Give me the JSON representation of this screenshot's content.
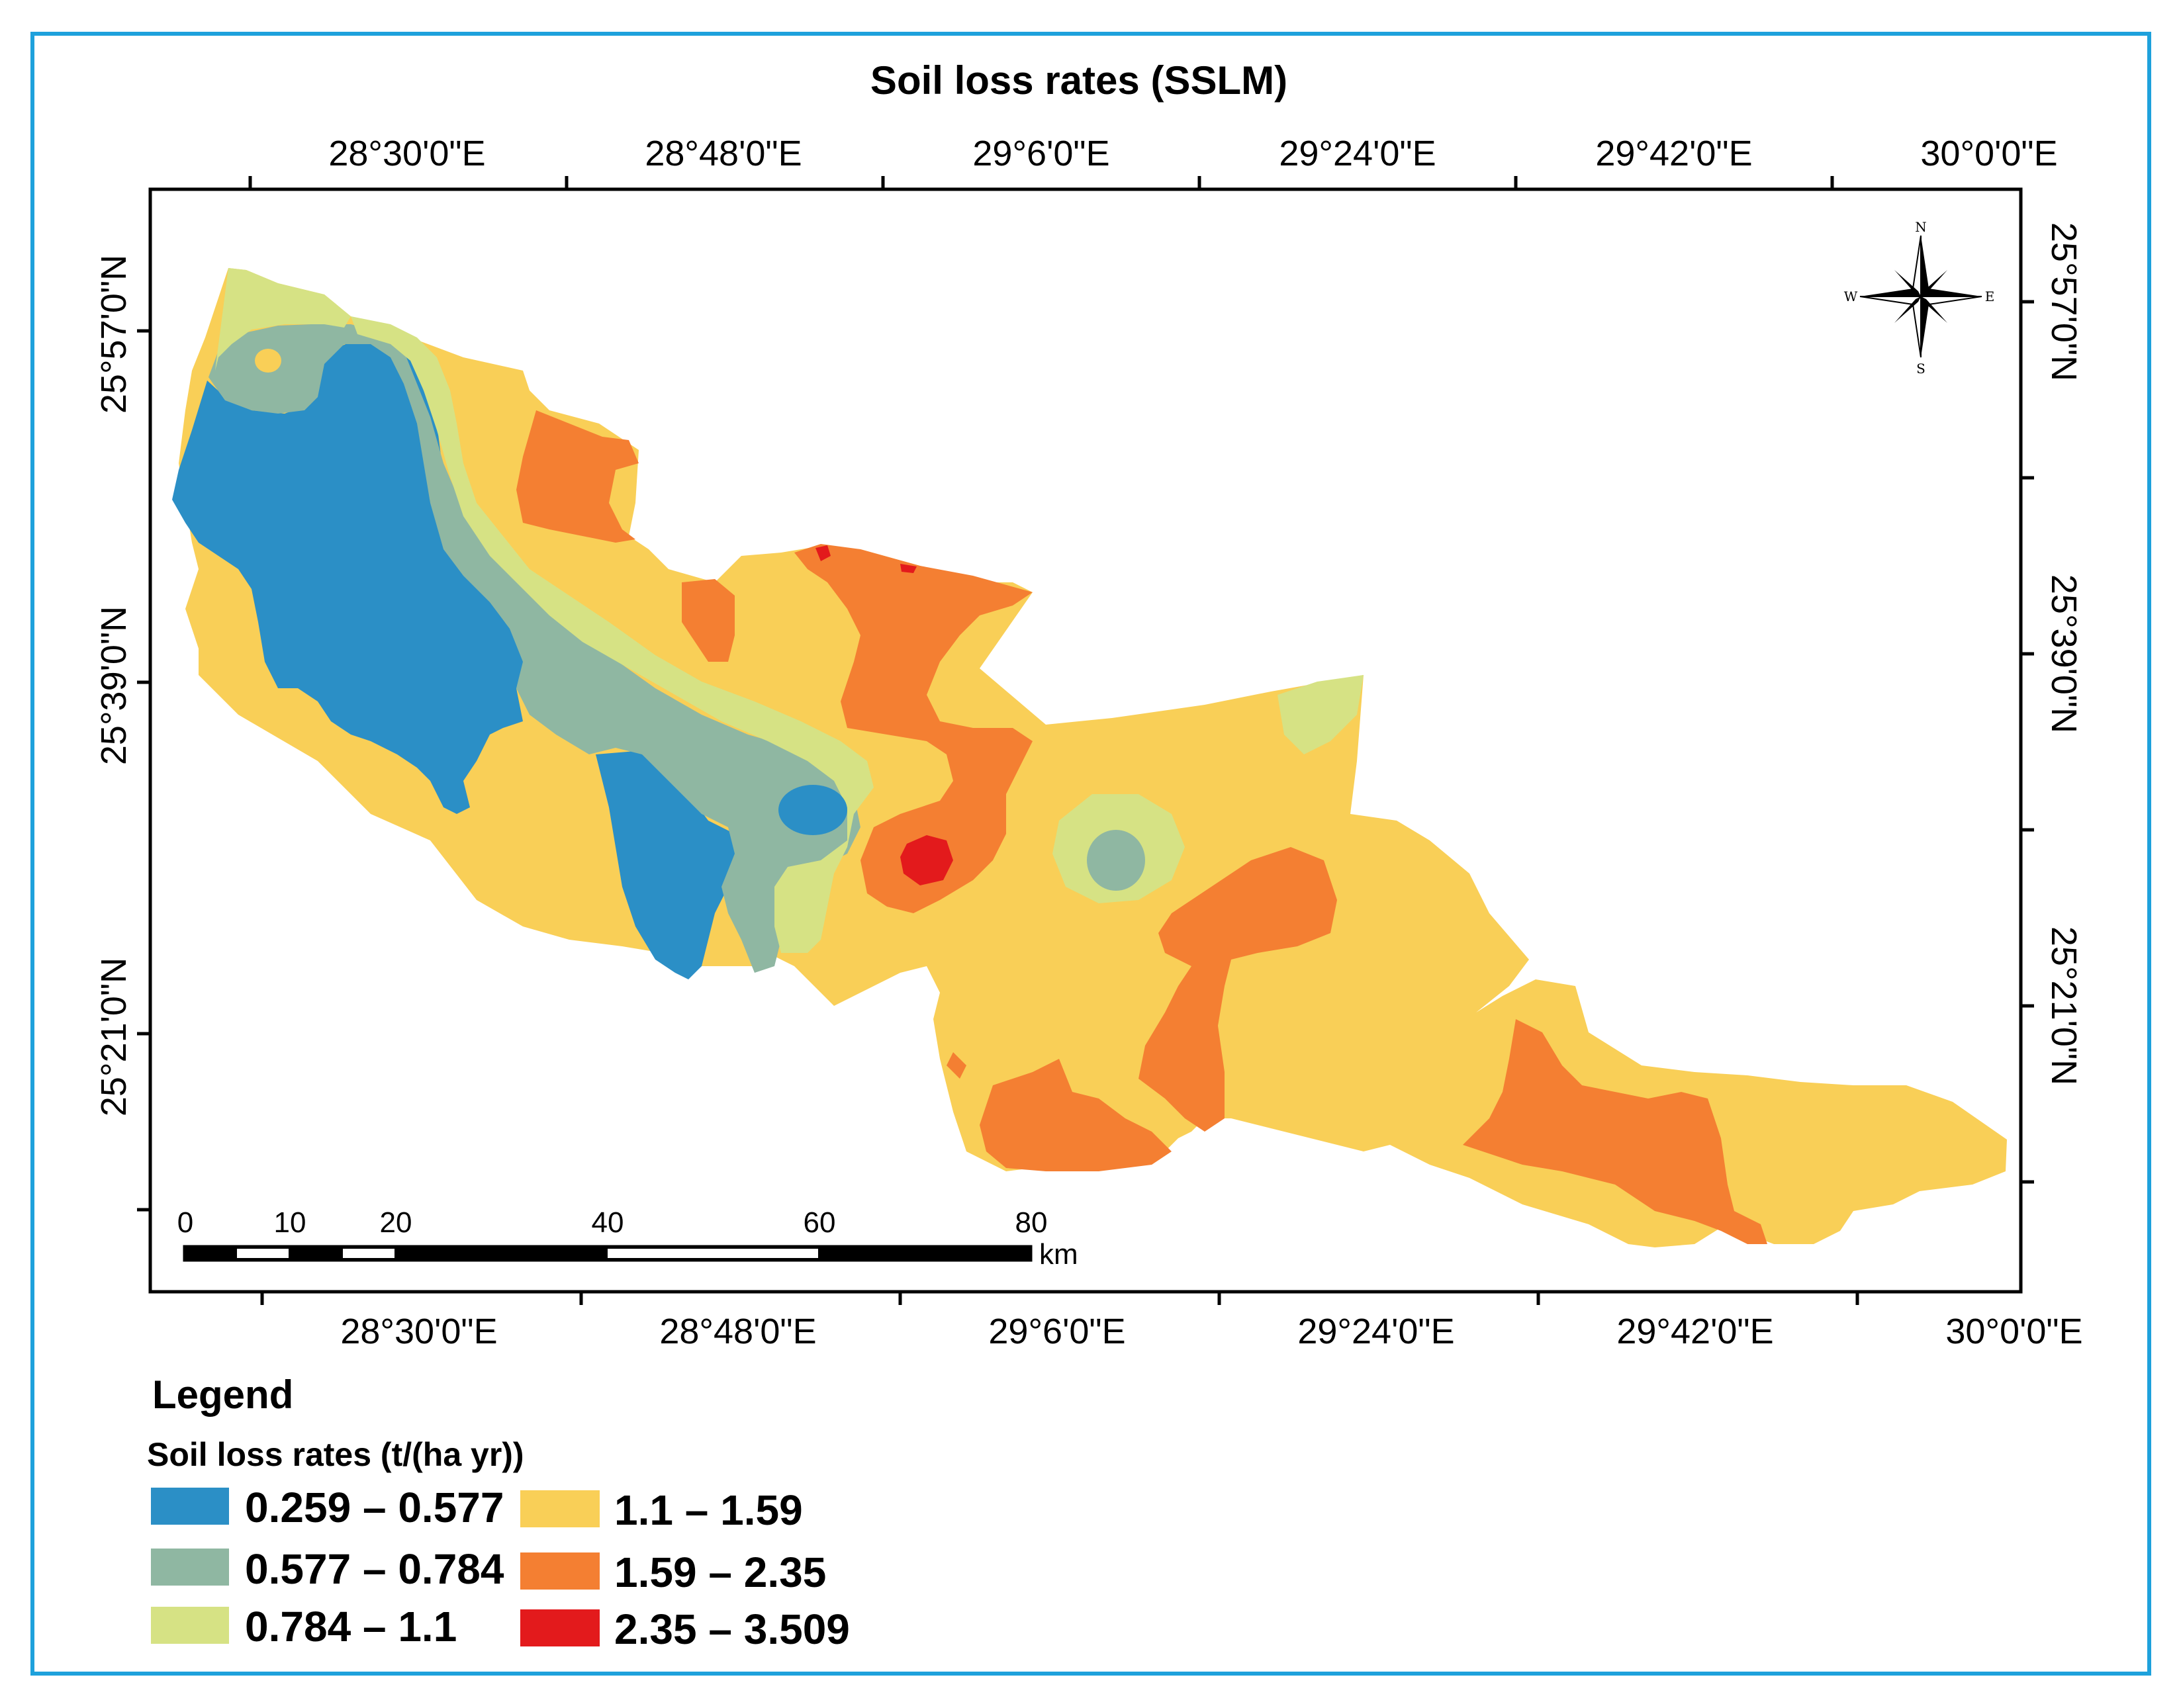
{
  "title": "Soil loss rates (SSLM)",
  "axes": {
    "top_ticks": [
      "28°30'0\"E",
      "28°48'0\"E",
      "29°6'0\"E",
      "29°24'0\"E",
      "29°42'0\"E",
      "30°0'0\"E"
    ],
    "bottom_ticks": [
      "28°30'0\"E",
      "28°48'0\"E",
      "29°6'0\"E",
      "29°24'0\"E",
      "29°42'0\"E",
      "30°0'0\"E"
    ],
    "left_ticks": [
      "25°57'0\"N",
      "25°39'0\"N",
      "25°21'0\"N"
    ],
    "right_ticks": [
      "25°57'0\"N",
      "25°39'0\"N",
      "25°21'0\"N"
    ]
  },
  "scale_bar": {
    "labels": [
      "0",
      "10",
      "20",
      "40",
      "60",
      "80"
    ],
    "unit": "km"
  },
  "compass": {
    "n": "N",
    "s": "S",
    "e": "E",
    "w": "W"
  },
  "legend": {
    "heading": "Legend",
    "subtitle": "Soil loss rates (t/(ha yr))",
    "classes": [
      {
        "label": "0.259 – 0.577",
        "color": "#2b8fc6"
      },
      {
        "label": "0.577 – 0.784",
        "color": "#8fb7a2"
      },
      {
        "label": "0.784 – 1.1",
        "color": "#d6e284"
      },
      {
        "label": "1.1 – 1.59",
        "color": "#f9cf57"
      },
      {
        "label": "1.59 – 2.35",
        "color": "#f47f32"
      },
      {
        "label": "2.35 – 3.509",
        "color": "#e31a1c"
      }
    ]
  },
  "colors": {
    "frame_border": "#1ea1dc",
    "class_1": "#2b8fc6",
    "class_2": "#8fb7a2",
    "class_3": "#d6e284",
    "class_4": "#f9cf57",
    "class_5": "#f47f32",
    "class_6": "#e31a1c"
  }
}
